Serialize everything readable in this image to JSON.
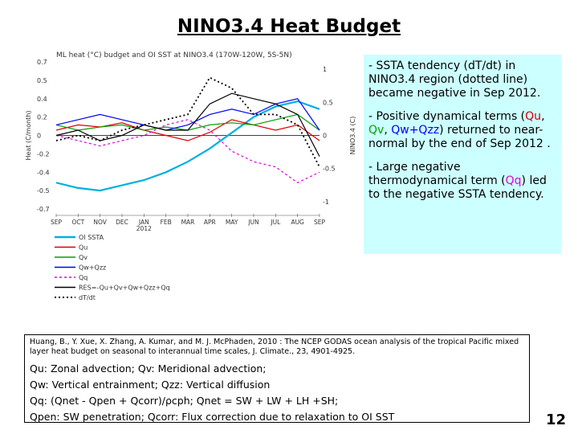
{
  "title": "NINO3.4 Heat Budget",
  "page_number": "12",
  "notes": {
    "p1": "- SSTA tendency (dT/dt) in NINO3.4 region (dotted line) became negative in Sep 2012.",
    "p2_a": "- Positive dynamical terms (",
    "p2_qu": "Qu",
    "p2_sep1": ", ",
    "p2_qv": "Qv",
    "p2_sep2": ", ",
    "p2_qw": "Qw+Qzz",
    "p2_b": ") returned to near-normal by the end of Sep 2012 .",
    "p3_a": "- Large negative thermodynamical term (",
    "p3_qq": "Qq",
    "p3_b": ") led to the negative SSTA tendency."
  },
  "reference": {
    "citation": "Huang, B., Y. Xue, X. Zhang, A. Kumar, and M. J. McPhaden, 2010 : The NCEP GODAS ocean analysis of the tropical Pacific mixed layer heat budget on seasonal to interannual time scales, J. Climate., 23, 4901-4925.",
    "line1": "Qu: Zonal advection;    Qv: Meridional advection;",
    "line2": "Qw: Vertical entrainment;  Qzz: Vertical diffusion",
    "line3": "Qq: (Qnet - Qpen + Qcorr)/ρcph;  Qnet = SW + LW + LH +SH;",
    "line4": "Qpen: SW penetration; Qcorr: Flux correction due to relaxation to OI SST"
  },
  "chart_data": {
    "type": "line",
    "title": "ML heat (°C) budget and OI SST at NINO3.4 (170W-120W, 5S-5N)",
    "ylabel_left": "Heat (C/month)",
    "ylabel_right": "NINO3.4 (C)",
    "ylim_left": [
      -0.7,
      0.7
    ],
    "ylim_right": [
      -1.4,
      1.4
    ],
    "yticks_left": [
      "0.7",
      "0.5",
      "0.4",
      "0.2",
      "0",
      "-0.2",
      "-0.4",
      "-0.5",
      "-0.7"
    ],
    "yticks_right": [
      "1",
      "0.5",
      "0",
      "-0.5",
      "-1"
    ],
    "categories": [
      "SEP",
      "OCT",
      "NOV",
      "DEC",
      "JAN 2012",
      "FEB",
      "MAR",
      "APR",
      "MAY",
      "JUN",
      "JUL",
      "AUG",
      "SEP"
    ],
    "grid": false,
    "legend_position": "bottom-left",
    "series": [
      {
        "name": "OI SSTA",
        "color": "#00b0e0",
        "dash": "",
        "width": 2.2,
        "axis": "right",
        "values": [
          -0.9,
          -1.0,
          -1.05,
          -0.95,
          -0.85,
          -0.7,
          -0.5,
          -0.25,
          0.05,
          0.35,
          0.55,
          0.65,
          0.5
        ]
      },
      {
        "name": "Qu",
        "color": "#e00000",
        "dash": "",
        "width": 1.2,
        "axis": "left",
        "values": [
          0.05,
          0.1,
          0.08,
          0.12,
          0.05,
          0.0,
          -0.05,
          0.03,
          0.15,
          0.1,
          0.05,
          0.1,
          -0.05
        ]
      },
      {
        "name": "Qv",
        "color": "#00a000",
        "dash": "",
        "width": 1.2,
        "axis": "left",
        "values": [
          0.1,
          0.05,
          0.08,
          0.1,
          0.05,
          0.08,
          0.05,
          0.1,
          0.12,
          0.1,
          0.15,
          0.2,
          0.05
        ]
      },
      {
        "name": "Qw+Qzz",
        "color": "#0000ff",
        "dash": "",
        "width": 1.2,
        "axis": "left",
        "values": [
          0.1,
          0.15,
          0.2,
          0.15,
          0.1,
          0.05,
          0.1,
          0.2,
          0.25,
          0.2,
          0.3,
          0.35,
          0.05
        ]
      },
      {
        "name": "Qq",
        "color": "#e000e0",
        "dash": "3,3",
        "width": 1.2,
        "axis": "left",
        "values": [
          0.0,
          -0.05,
          -0.1,
          -0.05,
          0.0,
          0.1,
          0.15,
          0.05,
          -0.15,
          -0.25,
          -0.3,
          -0.45,
          -0.35
        ]
      },
      {
        "name": "RES=-Qu+Qv+Qw+Qzz+Qq",
        "color": "#000000",
        "dash": "",
        "width": 1.2,
        "axis": "left",
        "values": [
          0.0,
          0.05,
          -0.05,
          0.0,
          0.1,
          0.05,
          0.05,
          0.3,
          0.4,
          0.35,
          0.3,
          0.2,
          -0.2
        ]
      },
      {
        "name": "dT/dt",
        "color": "#000000",
        "dash": "2,3",
        "width": 1.8,
        "axis": "left",
        "values": [
          -0.05,
          0.0,
          -0.05,
          0.05,
          0.1,
          0.15,
          0.2,
          0.55,
          0.45,
          0.2,
          0.2,
          0.1,
          -0.3
        ]
      }
    ]
  }
}
